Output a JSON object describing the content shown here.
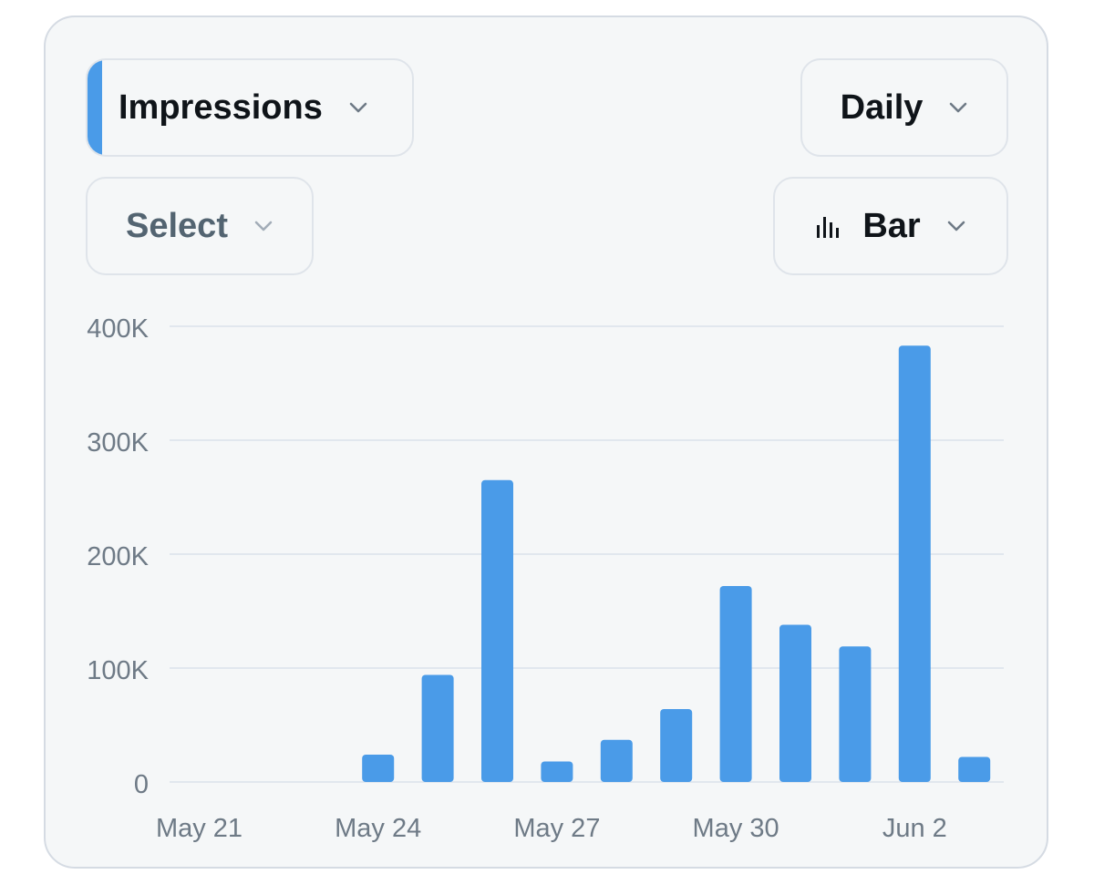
{
  "controls": {
    "metric_label": "Impressions",
    "period_label": "Daily",
    "select_label": "Select",
    "chart_type_label": "Bar"
  },
  "colors": {
    "accent": "#4a9be8",
    "bar": "#4a9be8",
    "grid": "#e1e7ee",
    "tick_text": "#6e7a86",
    "card_bg": "#f5f7f8"
  },
  "icons": {
    "chevron": "chevron-down-icon",
    "chart_type": "bar-chart-icon"
  },
  "chart_data": {
    "type": "bar",
    "title": "",
    "xlabel": "",
    "ylabel": "",
    "x": [
      "May 21",
      "May 22",
      "May 23",
      "May 24",
      "May 25",
      "May 26",
      "May 27",
      "May 28",
      "May 29",
      "May 30",
      "May 31",
      "Jun 1",
      "Jun 2",
      "Jun 3"
    ],
    "values": [
      0,
      0,
      0,
      24000,
      94000,
      265000,
      18000,
      37000,
      64000,
      172000,
      138000,
      119000,
      383000,
      22000
    ],
    "x_tick_labels": [
      "May 21",
      "May 24",
      "May 27",
      "May 30",
      "Jun 2"
    ],
    "y_ticks": [
      0,
      100000,
      200000,
      300000,
      400000
    ],
    "y_tick_labels": [
      "0",
      "100K",
      "200K",
      "300K",
      "400K"
    ],
    "ylim": [
      0,
      400000
    ],
    "grid": true,
    "legend": "none"
  }
}
